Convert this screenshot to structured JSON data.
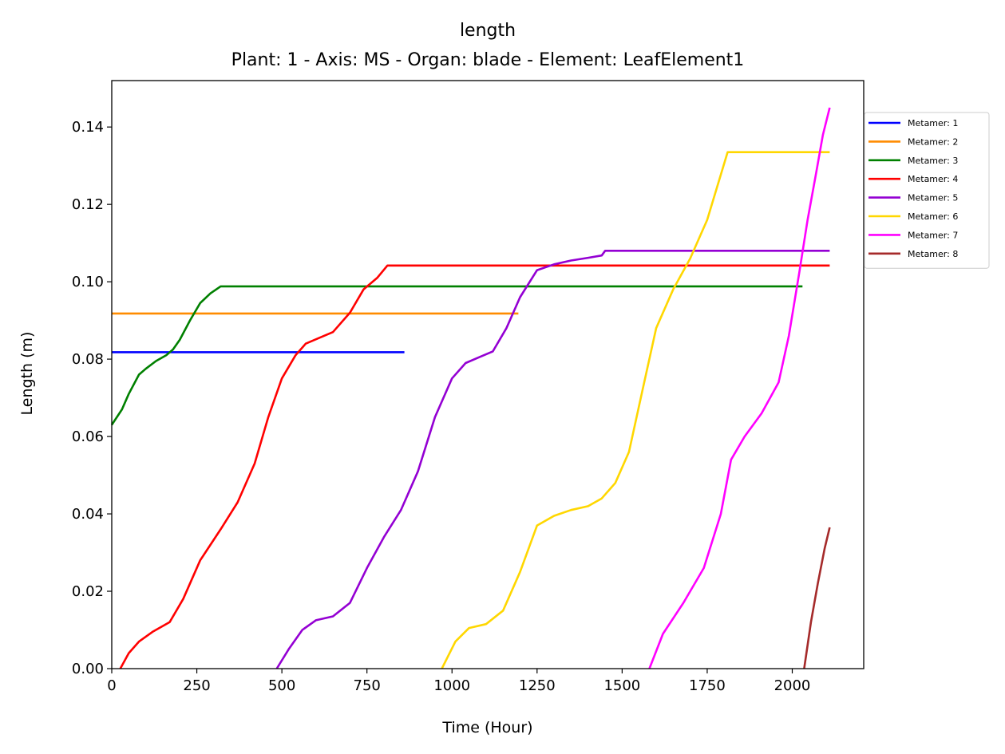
{
  "chart_data": {
    "type": "line",
    "title": "length",
    "subtitle": "Plant: 1 - Axis: MS - Organ: blade - Element: LeafElement1",
    "xlabel": "Time (Hour)",
    "ylabel": "Length (m)",
    "xlim": [
      0,
      2210
    ],
    "ylim": [
      0,
      0.152
    ],
    "xticks": [
      0,
      250,
      500,
      750,
      1000,
      1250,
      1500,
      1750,
      2000
    ],
    "xtick_labels": [
      "0",
      "250",
      "500",
      "750",
      "1000",
      "1250",
      "1500",
      "1750",
      "2000"
    ],
    "yticks": [
      0,
      0.02,
      0.04,
      0.06,
      0.08,
      0.1,
      0.12,
      0.14
    ],
    "ytick_labels": [
      "0.00",
      "0.02",
      "0.04",
      "0.06",
      "0.08",
      "0.10",
      "0.12",
      "0.14"
    ],
    "legend_position": "outside-top-right",
    "grid": false,
    "series": [
      {
        "name": "Metamer: 1",
        "color": "#0000ff",
        "x": [
          0,
          860
        ],
        "y": [
          0.0818,
          0.0818
        ]
      },
      {
        "name": "Metamer: 2",
        "color": "#ff8c00",
        "x": [
          0,
          1195
        ],
        "y": [
          0.0918,
          0.0918
        ]
      },
      {
        "name": "Metamer: 3",
        "color": "#008000",
        "x": [
          0,
          30,
          50,
          80,
          100,
          130,
          160,
          180,
          200,
          230,
          260,
          290,
          320,
          2030
        ],
        "y": [
          0.063,
          0.067,
          0.071,
          0.076,
          0.0775,
          0.0795,
          0.081,
          0.0825,
          0.085,
          0.09,
          0.0945,
          0.097,
          0.0988,
          0.0988
        ]
      },
      {
        "name": "Metamer: 4",
        "color": "#ff0000",
        "x": [
          25,
          50,
          80,
          120,
          170,
          210,
          260,
          320,
          370,
          420,
          460,
          500,
          540,
          570,
          610,
          650,
          700,
          740,
          780,
          810,
          2110
        ],
        "y": [
          0.0,
          0.004,
          0.007,
          0.0095,
          0.012,
          0.018,
          0.028,
          0.036,
          0.043,
          0.053,
          0.065,
          0.075,
          0.081,
          0.084,
          0.0855,
          0.087,
          0.092,
          0.098,
          0.101,
          0.1042,
          0.1042
        ]
      },
      {
        "name": "Metamer: 5",
        "color": "#9400d3",
        "x": [
          485,
          520,
          560,
          600,
          650,
          700,
          750,
          800,
          850,
          900,
          950,
          1000,
          1040,
          1080,
          1120,
          1160,
          1200,
          1250,
          1300,
          1350,
          1400,
          1440,
          1450,
          2110
        ],
        "y": [
          0.0,
          0.005,
          0.01,
          0.0125,
          0.0135,
          0.017,
          0.026,
          0.034,
          0.041,
          0.051,
          0.065,
          0.075,
          0.079,
          0.0805,
          0.082,
          0.088,
          0.096,
          0.103,
          0.1045,
          0.1055,
          0.1062,
          0.1068,
          0.108,
          0.108
        ]
      },
      {
        "name": "Metamer: 6",
        "color": "#ffd700",
        "x": [
          970,
          1010,
          1050,
          1100,
          1150,
          1200,
          1250,
          1300,
          1350,
          1400,
          1440,
          1480,
          1520,
          1560,
          1600,
          1650,
          1700,
          1750,
          1810,
          2110
        ],
        "y": [
          0.0,
          0.007,
          0.0105,
          0.0115,
          0.015,
          0.025,
          0.037,
          0.0395,
          0.041,
          0.042,
          0.044,
          0.048,
          0.056,
          0.072,
          0.088,
          0.098,
          0.106,
          0.116,
          0.1335,
          0.1335
        ]
      },
      {
        "name": "Metamer: 7",
        "color": "#ff00ff",
        "x": [
          1580,
          1620,
          1680,
          1740,
          1790,
          1820,
          1860,
          1910,
          1960,
          1990,
          2020,
          2045,
          2070,
          2090,
          2110
        ],
        "y": [
          0.0,
          0.009,
          0.017,
          0.026,
          0.04,
          0.054,
          0.06,
          0.066,
          0.074,
          0.086,
          0.102,
          0.116,
          0.128,
          0.138,
          0.145
        ]
      },
      {
        "name": "Metamer: 8",
        "color": "#a52a2a",
        "x": [
          2035,
          2055,
          2075,
          2095,
          2110
        ],
        "y": [
          0.0,
          0.012,
          0.022,
          0.031,
          0.0365
        ]
      }
    ]
  }
}
